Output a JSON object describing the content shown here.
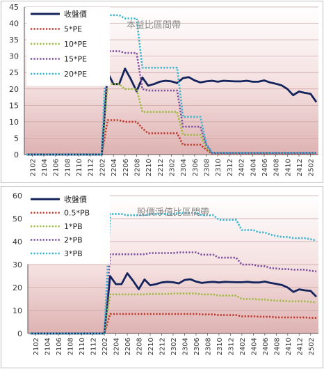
{
  "chart_data": [
    {
      "type": "line",
      "title": "本益比區間帶",
      "xlabel": "",
      "ylabel": "",
      "ylim": [
        0,
        45
      ],
      "yticks": [
        0,
        5,
        10,
        15,
        20,
        25,
        30,
        35,
        40,
        45
      ],
      "grid": "horizontal",
      "legend_position": "top-left",
      "background": "pink gradient",
      "x_ticks": [
        "2102",
        "2104",
        "2106",
        "2108",
        "2110",
        "2112",
        "2202",
        "2204",
        "2206",
        "2208",
        "2210",
        "2212",
        "2302",
        "2304",
        "2306",
        "2308",
        "2310",
        "2312",
        "2402",
        "2404",
        "2406",
        "2408",
        "2410",
        "2412",
        "2502"
      ],
      "x": [
        "2101",
        "2102",
        "2103",
        "2104",
        "2105",
        "2106",
        "2107",
        "2108",
        "2109",
        "2110",
        "2111",
        "2112",
        "2201",
        "2202",
        "2203",
        "2204",
        "2205",
        "2206",
        "2207",
        "2208",
        "2209",
        "2210",
        "2211",
        "2212",
        "2301",
        "2302",
        "2303",
        "2304",
        "2305",
        "2306",
        "2307",
        "2308",
        "2309",
        "2310",
        "2311",
        "2312",
        "2401",
        "2402",
        "2403",
        "2404",
        "2405",
        "2406",
        "2407",
        "2408",
        "2409",
        "2410",
        "2411",
        "2412",
        "2501",
        "2502",
        "2503"
      ],
      "series": [
        {
          "name": "收盤價",
          "color": "#13235b",
          "style": "solid",
          "values": [
            0,
            0,
            0,
            0,
            0,
            0,
            0,
            0,
            0,
            0,
            0,
            0,
            0,
            0,
            25,
            21.5,
            21.5,
            26.2,
            23,
            19.3,
            23.5,
            21,
            21.5,
            22.2,
            22.5,
            22.3,
            21.8,
            23.3,
            23.6,
            22.6,
            22,
            22.3,
            22.5,
            22.2,
            22.5,
            22.4,
            22.3,
            22.3,
            22.5,
            22.2,
            22.2,
            22.6,
            22,
            21.6,
            21.1,
            20,
            18.1,
            19.2,
            18.8,
            18.5,
            16
          ]
        },
        {
          "name": "5*PE",
          "color": "#c0392b",
          "style": "dotted",
          "values": [
            0,
            0,
            0,
            0,
            0,
            0,
            0,
            0,
            0,
            0,
            0,
            0,
            0,
            0,
            10.5,
            10.5,
            10.5,
            10,
            10,
            10,
            8,
            6.5,
            6.5,
            6.5,
            6.5,
            6.5,
            6.5,
            3,
            3,
            3,
            3,
            1.5,
            0.3,
            0.3,
            0.3,
            0.3,
            0.3,
            0.3,
            0.3,
            0.3,
            0.3,
            0.3,
            0.3,
            0.3,
            0.3,
            0.3,
            0.3,
            0.3,
            0.3,
            0.3,
            0.3
          ]
        },
        {
          "name": "10*PE",
          "color": "#9bbb3c",
          "style": "dotted",
          "values": [
            0,
            0,
            0,
            0,
            0,
            0,
            0,
            0,
            0,
            0,
            0,
            0,
            0,
            0,
            21.5,
            21.5,
            21.5,
            20,
            20,
            20,
            13,
            13,
            13,
            13,
            13,
            13,
            13,
            6,
            6,
            6,
            6,
            2,
            0.5,
            0.5,
            0.5,
            0.5,
            0.5,
            0.5,
            0.5,
            0.5,
            0.5,
            0.5,
            0.5,
            0.5,
            0.5,
            0.5,
            0.5,
            0.5,
            0.5,
            0.5,
            0.5
          ]
        },
        {
          "name": "15*PE",
          "color": "#7b4fa0",
          "style": "dotted",
          "values": [
            0,
            0,
            0,
            0,
            0,
            0,
            0,
            0,
            0,
            0,
            0,
            0,
            0,
            0,
            31.5,
            31.5,
            31.5,
            31,
            31,
            31,
            20,
            19.5,
            19.5,
            19.5,
            19.5,
            19.5,
            19.5,
            8.5,
            8.5,
            8.5,
            8.5,
            3,
            0.5,
            0.5,
            0.5,
            0.5,
            0.5,
            0.5,
            0.5,
            0.5,
            0.5,
            0.5,
            0.5,
            0.5,
            0.5,
            0.5,
            0.5,
            0.5,
            0.5,
            0.5,
            0.5
          ]
        },
        {
          "name": "20*PE",
          "color": "#35b5cf",
          "style": "dotted",
          "values": [
            0,
            0,
            0,
            0,
            0,
            0,
            0,
            0,
            0,
            0,
            0,
            0,
            0,
            0,
            42.5,
            42.5,
            42.5,
            41.5,
            41.5,
            41.5,
            26.5,
            26.5,
            26.5,
            26.5,
            26.5,
            26.5,
            26.5,
            11.5,
            11.5,
            11.5,
            11.5,
            3.5,
            0.5,
            0.5,
            0.5,
            0.5,
            0.5,
            0.5,
            0.5,
            0.5,
            0.5,
            0.5,
            0.5,
            0.5,
            0.5,
            0.5,
            0.5,
            0.5,
            0.5,
            0.5,
            0.5
          ]
        }
      ]
    },
    {
      "type": "line",
      "title": "股價淨值比區間帶",
      "xlabel": "",
      "ylabel": "",
      "ylim": [
        0,
        60
      ],
      "yticks": [
        0,
        10,
        20,
        30,
        40,
        50,
        60
      ],
      "grid": "horizontal",
      "legend_position": "top-left",
      "background": "pink gradient",
      "x_ticks": [
        "2102",
        "2104",
        "2106",
        "2108",
        "2110",
        "2112",
        "2202",
        "2204",
        "2206",
        "2208",
        "2210",
        "2212",
        "2302",
        "2304",
        "2306",
        "2308",
        "2310",
        "2312",
        "2402",
        "2404",
        "2406",
        "2408",
        "2410",
        "2412",
        "2502"
      ],
      "x": [
        "2101",
        "2102",
        "2103",
        "2104",
        "2105",
        "2106",
        "2107",
        "2108",
        "2109",
        "2110",
        "2111",
        "2112",
        "2201",
        "2202",
        "2203",
        "2204",
        "2205",
        "2206",
        "2207",
        "2208",
        "2209",
        "2210",
        "2211",
        "2212",
        "2301",
        "2302",
        "2303",
        "2304",
        "2305",
        "2306",
        "2307",
        "2308",
        "2309",
        "2310",
        "2311",
        "2312",
        "2401",
        "2402",
        "2403",
        "2404",
        "2405",
        "2406",
        "2407",
        "2408",
        "2409",
        "2410",
        "2411",
        "2412",
        "2501",
        "2502",
        "2503"
      ],
      "series": [
        {
          "name": "收盤價",
          "color": "#13235b",
          "style": "solid",
          "values": [
            0,
            0,
            0,
            0,
            0,
            0,
            0,
            0,
            0,
            0,
            0,
            0,
            0,
            0,
            25,
            21.5,
            21.5,
            26.2,
            23,
            19.3,
            23.5,
            21,
            21.5,
            22.2,
            22.5,
            22.3,
            21.8,
            23.3,
            23.6,
            22.6,
            22,
            22.3,
            22.5,
            22.2,
            22.5,
            22.4,
            22.3,
            22.3,
            22.5,
            22.2,
            22.2,
            22.6,
            22,
            21.6,
            21.1,
            20,
            18.1,
            19.2,
            18.8,
            18.5,
            16
          ]
        },
        {
          "name": "0.5*PB",
          "color": "#c0392b",
          "style": "dotted",
          "values": [
            0,
            0,
            0,
            0,
            0,
            0,
            0,
            0,
            0,
            0,
            0,
            0,
            0,
            0,
            8.5,
            8.5,
            8.5,
            8.5,
            8.5,
            8.5,
            8.5,
            8.5,
            8.5,
            8.5,
            8.5,
            8.5,
            8.5,
            8.5,
            8.5,
            8.5,
            8.3,
            8.3,
            8.3,
            8,
            8,
            8,
            8,
            7.5,
            7.5,
            7.5,
            7.3,
            7.3,
            7.3,
            7,
            7,
            7,
            7,
            7,
            7,
            6.8,
            6.8
          ]
        },
        {
          "name": "1*PB",
          "color": "#9bbb3c",
          "style": "dotted",
          "values": [
            0,
            0,
            0,
            0,
            0,
            0,
            0,
            0,
            0,
            0,
            0,
            0,
            0,
            0,
            17,
            17,
            17,
            17,
            17,
            17,
            17,
            17.2,
            17.2,
            17.2,
            17.2,
            17.4,
            17.4,
            17.4,
            17.4,
            17.4,
            17,
            17,
            17,
            16.5,
            16.5,
            16.5,
            16.5,
            15,
            15,
            15,
            14.8,
            14.8,
            14.5,
            14.3,
            14.2,
            14,
            14,
            14,
            14,
            13.8,
            13.5
          ]
        },
        {
          "name": "2*PB",
          "color": "#7b4fa0",
          "style": "dotted",
          "values": [
            0,
            0,
            0,
            0,
            0,
            0,
            0,
            0,
            0,
            0,
            0,
            0,
            0,
            0,
            34.5,
            34.5,
            34.5,
            34.5,
            34.5,
            34.5,
            34.5,
            35,
            35,
            35,
            35,
            35,
            35.3,
            35.3,
            35.3,
            35.3,
            34.3,
            34.3,
            34.3,
            33,
            33,
            33,
            33,
            30,
            30,
            30,
            29.3,
            29.3,
            28.5,
            28.3,
            28,
            28,
            27.8,
            27.8,
            27.8,
            27.3,
            27
          ]
        },
        {
          "name": "3*PB",
          "color": "#35b5cf",
          "style": "dotted",
          "values": [
            0,
            0,
            0,
            0,
            0,
            0,
            0,
            0,
            0,
            0,
            0,
            0,
            0,
            0,
            52,
            52,
            52,
            51.5,
            51.5,
            51.5,
            51.5,
            52,
            52,
            52,
            52,
            52,
            52.5,
            52.5,
            52.5,
            52.5,
            51.5,
            51.5,
            51.5,
            49.5,
            49.5,
            49.5,
            49.5,
            45,
            45,
            45,
            44,
            44,
            43,
            42.5,
            42,
            42,
            41.5,
            41.5,
            41.5,
            41,
            40.5
          ]
        }
      ]
    }
  ]
}
